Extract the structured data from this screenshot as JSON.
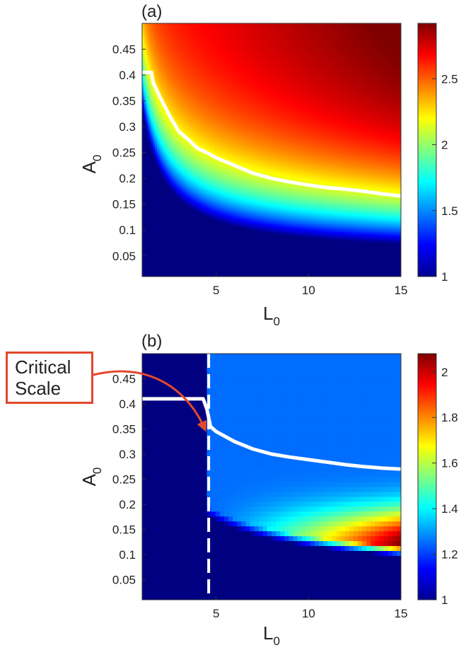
{
  "panels": [
    {
      "label": "(a)",
      "xlabel": "L",
      "xlabel_sub": "0",
      "ylabel": "A",
      "ylabel_sub": "0",
      "xticks": [
        "5",
        "10",
        "15"
      ],
      "yticks": [
        "0.05",
        "0.1",
        "0.15",
        "0.2",
        "0.25",
        "0.3",
        "0.35",
        "0.4",
        "0.45"
      ],
      "colorbar_ticks": [
        "1",
        "1.5",
        "2",
        "2.5"
      ]
    },
    {
      "label": "(b)",
      "xlabel": "L",
      "xlabel_sub": "0",
      "ylabel": "A",
      "ylabel_sub": "0",
      "xticks": [
        "5",
        "10",
        "15"
      ],
      "yticks": [
        "0.05",
        "0.1",
        "0.15",
        "0.2",
        "0.25",
        "0.3",
        "0.35",
        "0.4",
        "0.45"
      ],
      "colorbar_ticks": [
        "1",
        "1.2",
        "1.4",
        "1.6",
        "1.8",
        "2"
      ]
    }
  ],
  "annotation": {
    "line1": "Critical",
    "line2": "Scale"
  },
  "colors": {
    "annotation": "#e3472c",
    "overlay_line": "#ffffff",
    "colormap": "jet"
  },
  "chart_data": [
    {
      "type": "heatmap",
      "colormap": "jet",
      "xlim": [
        1,
        15
      ],
      "ylim": [
        0.01,
        0.5
      ],
      "clim": [
        1,
        2.92
      ],
      "threshold_curve": {
        "x": [
          1,
          1.5,
          1.6,
          2,
          2.5,
          3,
          3.5,
          4,
          4.5,
          5,
          6,
          7,
          8,
          9,
          10,
          11,
          12,
          13,
          14,
          15
        ],
        "y": [
          0.405,
          0.405,
          0.385,
          0.355,
          0.32,
          0.29,
          0.275,
          0.258,
          0.25,
          0.24,
          0.225,
          0.21,
          0.2,
          0.193,
          0.187,
          0.182,
          0.179,
          0.175,
          0.17,
          0.166
        ]
      }
    },
    {
      "type": "heatmap",
      "colormap": "jet",
      "xlim": [
        1,
        15
      ],
      "ylim": [
        0.01,
        0.5
      ],
      "clim": [
        1,
        2.08
      ],
      "critical_scale_x": 4.6,
      "threshold_curve": {
        "x": [
          1,
          4.3,
          4.5,
          4.7,
          5,
          6,
          7,
          8,
          9,
          10,
          11,
          12,
          13,
          14,
          15
        ],
        "y": [
          0.41,
          0.41,
          0.39,
          0.355,
          0.345,
          0.325,
          0.31,
          0.3,
          0.294,
          0.289,
          0.284,
          0.279,
          0.275,
          0.272,
          0.27
        ]
      }
    }
  ]
}
